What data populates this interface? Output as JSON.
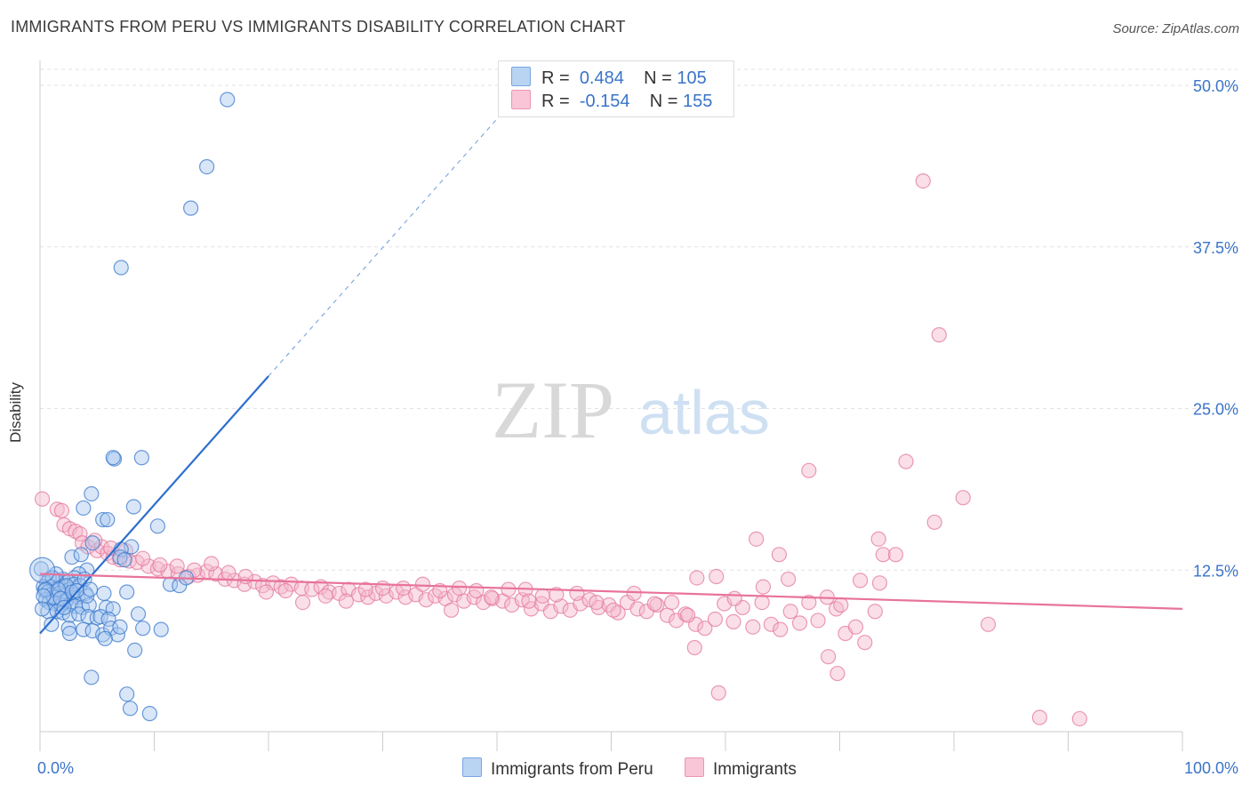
{
  "title": "IMMIGRANTS FROM PERU VS IMMIGRANTS DISABILITY CORRELATION CHART",
  "source": "Source: ZipAtlas.com",
  "watermark": {
    "zip": "ZIP",
    "atlas": "atlas"
  },
  "legend": {
    "rows": [
      {
        "r_label": "R =",
        "r_value": "0.484",
        "n_label": "N =",
        "n_value": "105"
      },
      {
        "r_label": "R =",
        "r_value": "-0.154",
        "n_label": "N =",
        "n_value": "155"
      }
    ]
  },
  "bottom_legend": [
    "Immigrants from Peru",
    "Immigrants"
  ],
  "colors": {
    "blue_fill": "#a9c8f0",
    "blue_stroke": "#3a78cc",
    "blue_line": "#2e6fce",
    "pink_fill": "#f5b8cc",
    "pink_stroke": "#e47a9c",
    "pink_line": "#e8739a",
    "tick_text": "#3a74c9",
    "grid": "#e2e2e2"
  },
  "chart_data": {
    "type": "scatter",
    "title": "IMMIGRANTS FROM PERU VS IMMIGRANTS DISABILITY CORRELATION CHART",
    "xlabel": "",
    "ylabel": "Disability",
    "xlim": [
      0,
      100
    ],
    "ylim": [
      0,
      51.5
    ],
    "x_tick_labels": [
      "0.0%",
      "100.0%"
    ],
    "y_ticks": [
      12.5,
      25.0,
      37.5,
      50.0
    ],
    "y_tick_labels": [
      "12.5%",
      "25.0%",
      "37.5%",
      "50.0%"
    ],
    "grid": true,
    "legend_position": "top-center",
    "series": [
      {
        "name": "Immigrants from Peru",
        "R": 0.484,
        "N": 105,
        "trend": {
          "x0": 0,
          "y0": 7.6,
          "x1": 20,
          "y1": 27.5,
          "dashed_to_x": 40
        },
        "points": [
          [
            16.4,
            48.9
          ],
          [
            14.6,
            43.7
          ],
          [
            13.2,
            40.5
          ],
          [
            7.1,
            35.9
          ],
          [
            8.9,
            21.2
          ],
          [
            6.5,
            21.1
          ],
          [
            6.4,
            21.2
          ],
          [
            4.5,
            18.4
          ],
          [
            3.8,
            17.3
          ],
          [
            8.2,
            17.4
          ],
          [
            5.5,
            16.4
          ],
          [
            5.9,
            16.4
          ],
          [
            10.3,
            15.9
          ],
          [
            4.6,
            14.6
          ],
          [
            8.0,
            14.3
          ],
          [
            7.1,
            14.1
          ],
          [
            2.8,
            13.5
          ],
          [
            3.6,
            13.7
          ],
          [
            7.0,
            13.5
          ],
          [
            7.4,
            13.3
          ],
          [
            4.1,
            12.5
          ],
          [
            3.4,
            12.2
          ],
          [
            3.0,
            11.9
          ],
          [
            2.0,
            11.8
          ],
          [
            2.5,
            11.6
          ],
          [
            1.5,
            11.6
          ],
          [
            0.8,
            11.8
          ],
          [
            0.6,
            11.5
          ],
          [
            0.9,
            11.2
          ],
          [
            1.2,
            11.0
          ],
          [
            1.8,
            11.1
          ],
          [
            2.2,
            11.2
          ],
          [
            2.6,
            11.0
          ],
          [
            3.0,
            11.4
          ],
          [
            3.5,
            11.3
          ],
          [
            0.3,
            11.2
          ],
          [
            0.4,
            10.9
          ],
          [
            0.7,
            10.8
          ],
          [
            1.0,
            10.6
          ],
          [
            1.4,
            10.4
          ],
          [
            1.7,
            10.7
          ],
          [
            2.1,
            10.5
          ],
          [
            2.4,
            10.3
          ],
          [
            2.9,
            10.6
          ],
          [
            3.3,
            10.4
          ],
          [
            4.0,
            10.7
          ],
          [
            5.6,
            10.7
          ],
          [
            0.5,
            10.2
          ],
          [
            0.8,
            10.0
          ],
          [
            1.3,
            9.9
          ],
          [
            1.9,
            9.8
          ],
          [
            2.3,
            10.1
          ],
          [
            2.7,
            9.9
          ],
          [
            3.1,
            9.7
          ],
          [
            3.7,
            9.6
          ],
          [
            4.3,
            9.8
          ],
          [
            5.8,
            9.6
          ],
          [
            6.4,
            9.5
          ],
          [
            0.7,
            9.3
          ],
          [
            1.5,
            9.3
          ],
          [
            2.0,
            9.2
          ],
          [
            2.6,
            9.0
          ],
          [
            3.4,
            9.1
          ],
          [
            4.2,
            8.9
          ],
          [
            5.0,
            8.8
          ],
          [
            5.3,
            8.9
          ],
          [
            6.0,
            8.7
          ],
          [
            8.6,
            9.1
          ],
          [
            11.4,
            11.4
          ],
          [
            12.2,
            11.3
          ],
          [
            12.8,
            11.9
          ],
          [
            7.6,
            10.8
          ],
          [
            1.0,
            8.3
          ],
          [
            2.5,
            8.0
          ],
          [
            3.8,
            7.9
          ],
          [
            4.6,
            7.8
          ],
          [
            5.5,
            7.5
          ],
          [
            6.2,
            8.0
          ],
          [
            6.8,
            7.5
          ],
          [
            7.0,
            8.1
          ],
          [
            9.0,
            8.0
          ],
          [
            10.6,
            7.9
          ],
          [
            0.2,
            9.5
          ],
          [
            2.6,
            7.6
          ],
          [
            5.7,
            7.2
          ],
          [
            8.3,
            6.3
          ],
          [
            4.5,
            4.2
          ],
          [
            7.6,
            2.9
          ],
          [
            7.9,
            1.8
          ],
          [
            9.6,
            1.4
          ],
          [
            0.1,
            12.6
          ],
          [
            1.4,
            12.2
          ],
          [
            2.3,
            11.3
          ],
          [
            1.1,
            11.9
          ],
          [
            3.9,
            11.8
          ],
          [
            1.2,
            10.4
          ],
          [
            0.5,
            11.0
          ],
          [
            2.8,
            10.8
          ],
          [
            1.6,
            11.0
          ],
          [
            4.1,
            10.5
          ],
          [
            3.2,
            10.9
          ],
          [
            0.3,
            10.5
          ],
          [
            1.8,
            10.3
          ],
          [
            2.1,
            9.6
          ],
          [
            4.4,
            11.0
          ]
        ]
      },
      {
        "name": "Immigrants",
        "R": -0.154,
        "N": 155,
        "trend": {
          "x0": 0,
          "y0": 12.2,
          "x1": 100,
          "y1": 9.5
        },
        "points": [
          [
            77.3,
            42.6
          ],
          [
            78.7,
            30.7
          ],
          [
            75.8,
            20.9
          ],
          [
            67.3,
            20.2
          ],
          [
            80.8,
            18.1
          ],
          [
            0.2,
            18.0
          ],
          [
            1.5,
            17.2
          ],
          [
            1.9,
            17.1
          ],
          [
            78.3,
            16.2
          ],
          [
            2.1,
            16.0
          ],
          [
            2.6,
            15.7
          ],
          [
            3.1,
            15.5
          ],
          [
            3.5,
            15.3
          ],
          [
            62.7,
            14.9
          ],
          [
            73.4,
            14.9
          ],
          [
            3.7,
            14.6
          ],
          [
            4.2,
            14.3
          ],
          [
            5.0,
            14.0
          ],
          [
            5.4,
            14.3
          ],
          [
            5.9,
            13.8
          ],
          [
            64.7,
            13.7
          ],
          [
            73.8,
            13.7
          ],
          [
            74.9,
            13.7
          ],
          [
            6.4,
            13.5
          ],
          [
            7.0,
            13.3
          ],
          [
            7.8,
            13.2
          ],
          [
            8.5,
            13.1
          ],
          [
            9.5,
            12.8
          ],
          [
            10.3,
            12.6
          ],
          [
            11.2,
            12.4
          ],
          [
            12.1,
            12.2
          ],
          [
            13.0,
            12.0
          ],
          [
            13.8,
            12.1
          ],
          [
            14.6,
            12.4
          ],
          [
            15.4,
            12.2
          ],
          [
            16.2,
            11.8
          ],
          [
            17.0,
            11.7
          ],
          [
            17.9,
            11.4
          ],
          [
            18.8,
            11.6
          ],
          [
            19.5,
            11.3
          ],
          [
            20.4,
            11.5
          ],
          [
            21.1,
            11.2
          ],
          [
            22.0,
            11.4
          ],
          [
            22.9,
            11.1
          ],
          [
            23.8,
            11.0
          ],
          [
            24.6,
            11.2
          ],
          [
            25.3,
            10.8
          ],
          [
            26.2,
            10.7
          ],
          [
            27.0,
            11.0
          ],
          [
            27.9,
            10.6
          ],
          [
            28.7,
            10.4
          ],
          [
            29.4,
            10.7
          ],
          [
            30.3,
            10.5
          ],
          [
            31.2,
            10.8
          ],
          [
            32.0,
            10.4
          ],
          [
            32.9,
            10.6
          ],
          [
            33.8,
            10.2
          ],
          [
            34.6,
            10.5
          ],
          [
            35.5,
            10.3
          ],
          [
            36.3,
            10.6
          ],
          [
            37.1,
            10.1
          ],
          [
            38.0,
            10.4
          ],
          [
            38.8,
            10.0
          ],
          [
            39.6,
            10.3
          ],
          [
            40.5,
            10.1
          ],
          [
            41.3,
            9.8
          ],
          [
            42.2,
            10.2
          ],
          [
            43.0,
            9.5
          ],
          [
            43.9,
            9.9
          ],
          [
            44.7,
            9.3
          ],
          [
            45.6,
            9.7
          ],
          [
            46.4,
            9.4
          ],
          [
            47.3,
            9.9
          ],
          [
            48.1,
            10.2
          ],
          [
            48.9,
            9.6
          ],
          [
            49.8,
            9.8
          ],
          [
            50.6,
            9.2
          ],
          [
            51.4,
            10.0
          ],
          [
            52.3,
            9.5
          ],
          [
            53.1,
            9.3
          ],
          [
            54.0,
            9.8
          ],
          [
            54.9,
            9.0
          ],
          [
            55.7,
            8.6
          ],
          [
            56.5,
            9.1
          ],
          [
            57.4,
            8.3
          ],
          [
            58.2,
            8.0
          ],
          [
            59.1,
            8.7
          ],
          [
            59.9,
            9.9
          ],
          [
            60.7,
            8.5
          ],
          [
            61.5,
            9.6
          ],
          [
            62.4,
            8.1
          ],
          [
            63.2,
            10.0
          ],
          [
            64.0,
            8.3
          ],
          [
            64.8,
            7.9
          ],
          [
            65.7,
            9.3
          ],
          [
            66.5,
            8.4
          ],
          [
            67.3,
            10.0
          ],
          [
            68.1,
            8.6
          ],
          [
            68.9,
            10.4
          ],
          [
            69.7,
            9.5
          ],
          [
            70.5,
            7.6
          ],
          [
            71.4,
            8.1
          ],
          [
            72.2,
            6.9
          ],
          [
            73.1,
            9.3
          ],
          [
            73.5,
            11.5
          ],
          [
            71.8,
            11.7
          ],
          [
            70.1,
            9.8
          ],
          [
            65.5,
            11.8
          ],
          [
            63.3,
            11.2
          ],
          [
            59.2,
            12.0
          ],
          [
            57.5,
            11.9
          ],
          [
            60.8,
            10.3
          ],
          [
            56.7,
            9.0
          ],
          [
            55.3,
            10.0
          ],
          [
            53.8,
            9.9
          ],
          [
            52.0,
            10.7
          ],
          [
            50.2,
            9.4
          ],
          [
            48.7,
            10.0
          ],
          [
            47.0,
            10.7
          ],
          [
            45.2,
            10.6
          ],
          [
            44.0,
            10.5
          ],
          [
            42.5,
            11.0
          ],
          [
            41.0,
            11.0
          ],
          [
            39.5,
            10.4
          ],
          [
            38.2,
            10.9
          ],
          [
            36.7,
            11.1
          ],
          [
            35.0,
            10.9
          ],
          [
            33.5,
            11.4
          ],
          [
            31.8,
            11.1
          ],
          [
            30.0,
            11.1
          ],
          [
            28.5,
            11.0
          ],
          [
            26.8,
            10.1
          ],
          [
            25.0,
            10.5
          ],
          [
            23.0,
            10.0
          ],
          [
            21.5,
            10.9
          ],
          [
            19.8,
            10.8
          ],
          [
            18.0,
            12.0
          ],
          [
            16.5,
            12.3
          ],
          [
            15.0,
            13.0
          ],
          [
            13.5,
            12.5
          ],
          [
            12.0,
            12.8
          ],
          [
            10.5,
            12.9
          ],
          [
            9.0,
            13.4
          ],
          [
            7.5,
            14.0
          ],
          [
            6.2,
            14.2
          ],
          [
            4.8,
            14.8
          ],
          [
            69.0,
            5.8
          ],
          [
            69.8,
            4.5
          ],
          [
            59.4,
            3.0
          ],
          [
            57.3,
            6.5
          ],
          [
            83.0,
            8.3
          ],
          [
            87.5,
            1.1
          ],
          [
            91.0,
            1.0
          ],
          [
            42.8,
            10.1
          ],
          [
            36.0,
            9.4
          ]
        ]
      }
    ]
  }
}
